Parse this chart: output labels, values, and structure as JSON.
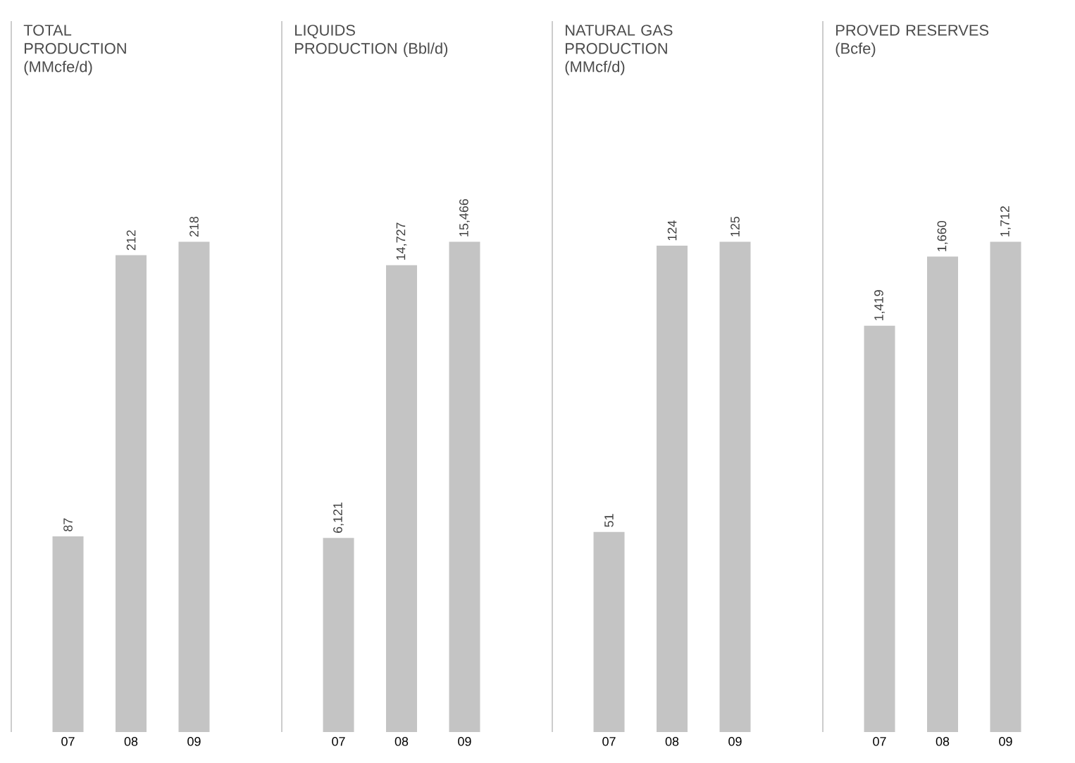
{
  "chart_data": [
    {
      "type": "bar",
      "title": "TOTAL PRODUCTION (MMcfe/d)",
      "categories": [
        "07",
        "08",
        "09"
      ],
      "values": [
        87,
        212,
        218
      ],
      "value_labels": [
        "87",
        "212",
        "218"
      ],
      "color": "#c4c4c4"
    },
    {
      "type": "bar",
      "title": "LIQUIDS PRODUCTION (Bbl/d)",
      "categories": [
        "07",
        "08",
        "09"
      ],
      "values": [
        6121,
        14727,
        15466
      ],
      "value_labels": [
        "6,121",
        "14,727",
        "15,466"
      ],
      "color": "#c4c4c4"
    },
    {
      "type": "bar",
      "title": "NATURAL GAS PRODUCTION (MMcf/d)",
      "categories": [
        "07",
        "08",
        "09"
      ],
      "values": [
        51,
        124,
        125
      ],
      "value_labels": [
        "51",
        "124",
        "125"
      ],
      "color": "#c4c4c4"
    },
    {
      "type": "bar",
      "title": "PROVED RESERVES (Bcfe)",
      "categories": [
        "07",
        "08",
        "09"
      ],
      "values": [
        1419,
        1660,
        1712
      ],
      "value_labels": [
        "1,419",
        "1,660",
        "1,712"
      ],
      "color": "#c4c4c4"
    }
  ]
}
